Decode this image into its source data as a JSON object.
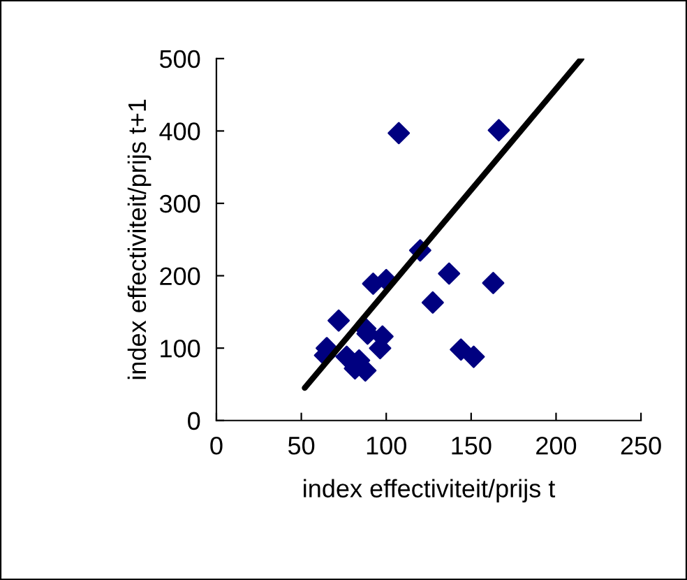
{
  "chart_data": {
    "type": "scatter",
    "xlabel": "index effectiviteit/prijs t",
    "ylabel": "index effectiviteit/prijs t+1",
    "xlim": [
      0,
      250
    ],
    "ylim": [
      0,
      500
    ],
    "xticks": [
      0,
      50,
      100,
      150,
      200,
      250
    ],
    "yticks": [
      0,
      100,
      200,
      300,
      400,
      500
    ],
    "grid": false,
    "legend": false,
    "series": [
      {
        "marker": "diamond",
        "color": "#000080",
        "x": [
          107.4,
          166.3,
          120,
          137,
          92.3,
          100,
          163,
          127.4,
          72,
          87.7,
          89,
          97.8,
          96.4,
          65,
          64,
          76.7,
          84,
          81.6,
          87.7,
          144,
          151.5
        ],
        "values": [
          397,
          401,
          235,
          203,
          189,
          194,
          190,
          163,
          138,
          127,
          120,
          116,
          100,
          100,
          90,
          88,
          83,
          72,
          69,
          98,
          88
        ]
      },
      {
        "type": "line",
        "marker": "none",
        "color": "#000000",
        "x": [
          52,
          215
        ],
        "values": [
          45,
          500
        ]
      }
    ]
  }
}
